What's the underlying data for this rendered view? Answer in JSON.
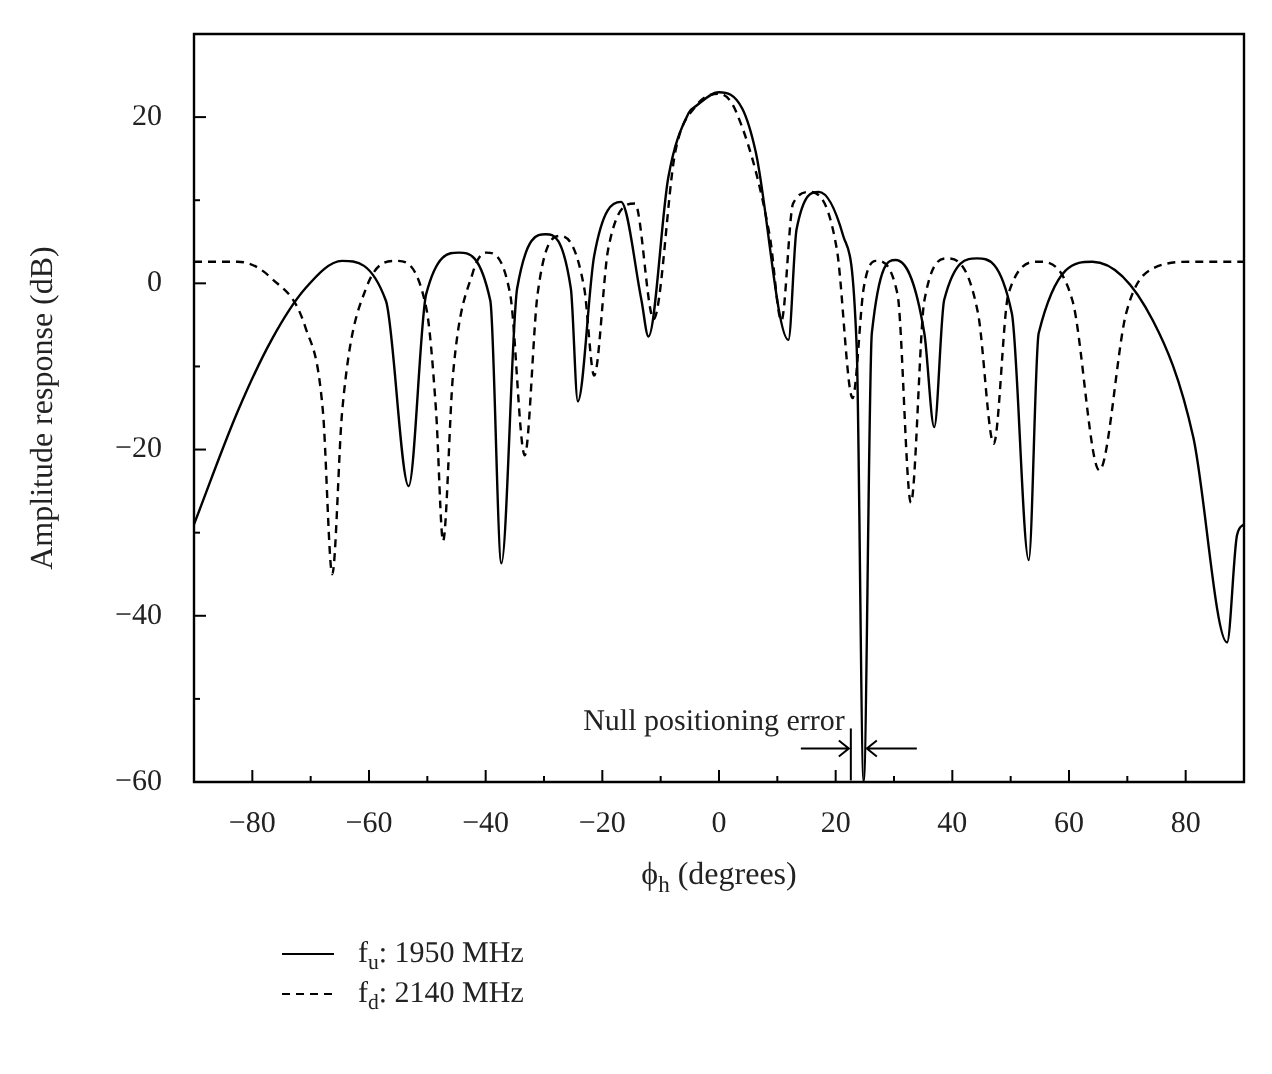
{
  "chart_data": {
    "type": "line",
    "xlabel": "ϕ$_{h}$ (degrees)",
    "ylabel": "Amplitude response (dB)",
    "xlim": [
      -90,
      90
    ],
    "ylim": [
      -60,
      30
    ],
    "xticks": [
      {
        "value": -90,
        "label": null
      },
      -80,
      {
        "value": -70,
        "label": null
      },
      -60,
      {
        "value": -50,
        "label": null
      },
      -40,
      {
        "value": -30,
        "label": null
      },
      -20,
      {
        "value": -10,
        "label": null
      },
      0,
      {
        "value": 10,
        "label": null
      },
      20,
      {
        "value": 30,
        "label": null
      },
      40,
      {
        "value": 50,
        "label": null
      },
      60,
      {
        "value": 70,
        "label": null
      },
      80,
      {
        "value": 90,
        "label": null
      }
    ],
    "yticks": [
      -60,
      {
        "value": -50,
        "label": null
      },
      -40,
      {
        "value": -30,
        "label": null
      },
      -20,
      {
        "value": -10,
        "label": null
      },
      0,
      {
        "value": 10,
        "label": null
      },
      20
    ],
    "grid": false,
    "legend": "bottom left",
    "marker": "none",
    "annotations": [
      {
        "text": "Null positioning error",
        "x": 25,
        "y": -55
      }
    ],
    "series": [
      {
        "name": "f$_{u}$: 1950 MHz",
        "color": "#000000",
        "line_style": "solid",
        "x": [
          -90,
          -82.5,
          -76.7,
          -70.9,
          -64.6,
          -57.1,
          -53.2,
          -50.2,
          -44.6,
          -39.2,
          -37.3,
          -34.6,
          -29.7,
          -25.4,
          -24.2,
          -21.4,
          -16.8,
          -13.3,
          -12.1,
          -8.7,
          -5.2,
          -4,
          0,
          4,
          6.3,
          11.9,
          13.3,
          17.1,
          21.3,
          23.6,
          24.8,
          26.2,
          30.3,
          35.2,
          36.9,
          38.6,
          44.2,
          50.2,
          53.1,
          54.8,
          64,
          74.4,
          81.3,
          87.1,
          88.8,
          90
        ],
        "values": [
          -29,
          -15.4,
          -6.8,
          -0.6,
          2.7,
          -2.1,
          -24.4,
          -1.3,
          3.7,
          -2.1,
          -33.7,
          -0.6,
          5.9,
          -0.6,
          -14.2,
          3.3,
          9.8,
          -2,
          -6.4,
          12.7,
          20.5,
          21.3,
          23,
          21,
          15.8,
          -6.8,
          6.5,
          11,
          5.7,
          -7.6,
          -60,
          -6,
          2.8,
          -6,
          -17.3,
          -2,
          3,
          -3.6,
          -33.3,
          -6,
          2.6,
          -4.5,
          -18.5,
          -43.2,
          -30.3,
          -29
        ]
      },
      {
        "name": "f$_{d}$: 2140 MHz",
        "color": "#000000",
        "line_style": "dashed",
        "x": [
          -90,
          -82.5,
          -76.7,
          -70.9,
          -67.9,
          -66.3,
          -64.6,
          -60.5,
          -55.3,
          -50.2,
          -48.5,
          -47.3,
          -45.6,
          -42.2,
          -39.9,
          -35.8,
          -33.3,
          -31.1,
          -27.1,
          -23.1,
          -21.4,
          -19,
          -14.4,
          -11.2,
          -7.5,
          -4,
          0,
          2.9,
          8.7,
          10.7,
          12.7,
          15.6,
          20.2,
          22.9,
          24.8,
          26.9,
          30.6,
          32.9,
          35.2,
          39.2,
          44.4,
          47.1,
          49.6,
          54.8,
          60.6,
          65.2,
          69.8,
          74.4,
          81.3,
          90
        ],
        "values": [
          2.6,
          2.6,
          0.6,
          -5.3,
          -15.4,
          -35,
          -15.4,
          -0.6,
          2.7,
          -2.9,
          -15.4,
          -31,
          -11,
          1.3,
          3.7,
          -1.3,
          -20.7,
          -1.3,
          5.7,
          -0.6,
          -11.1,
          4.1,
          9.6,
          -4.3,
          15.8,
          21.3,
          22.8,
          20.7,
          5.7,
          -4.5,
          9.6,
          11,
          4.1,
          -13.8,
          -0.6,
          2.7,
          -1.3,
          -26.4,
          -2.1,
          3,
          -3.6,
          -19.3,
          -1.3,
          2.6,
          -2.1,
          -22.5,
          -3.6,
          1.8,
          2.6,
          2.6
        ]
      }
    ]
  }
}
